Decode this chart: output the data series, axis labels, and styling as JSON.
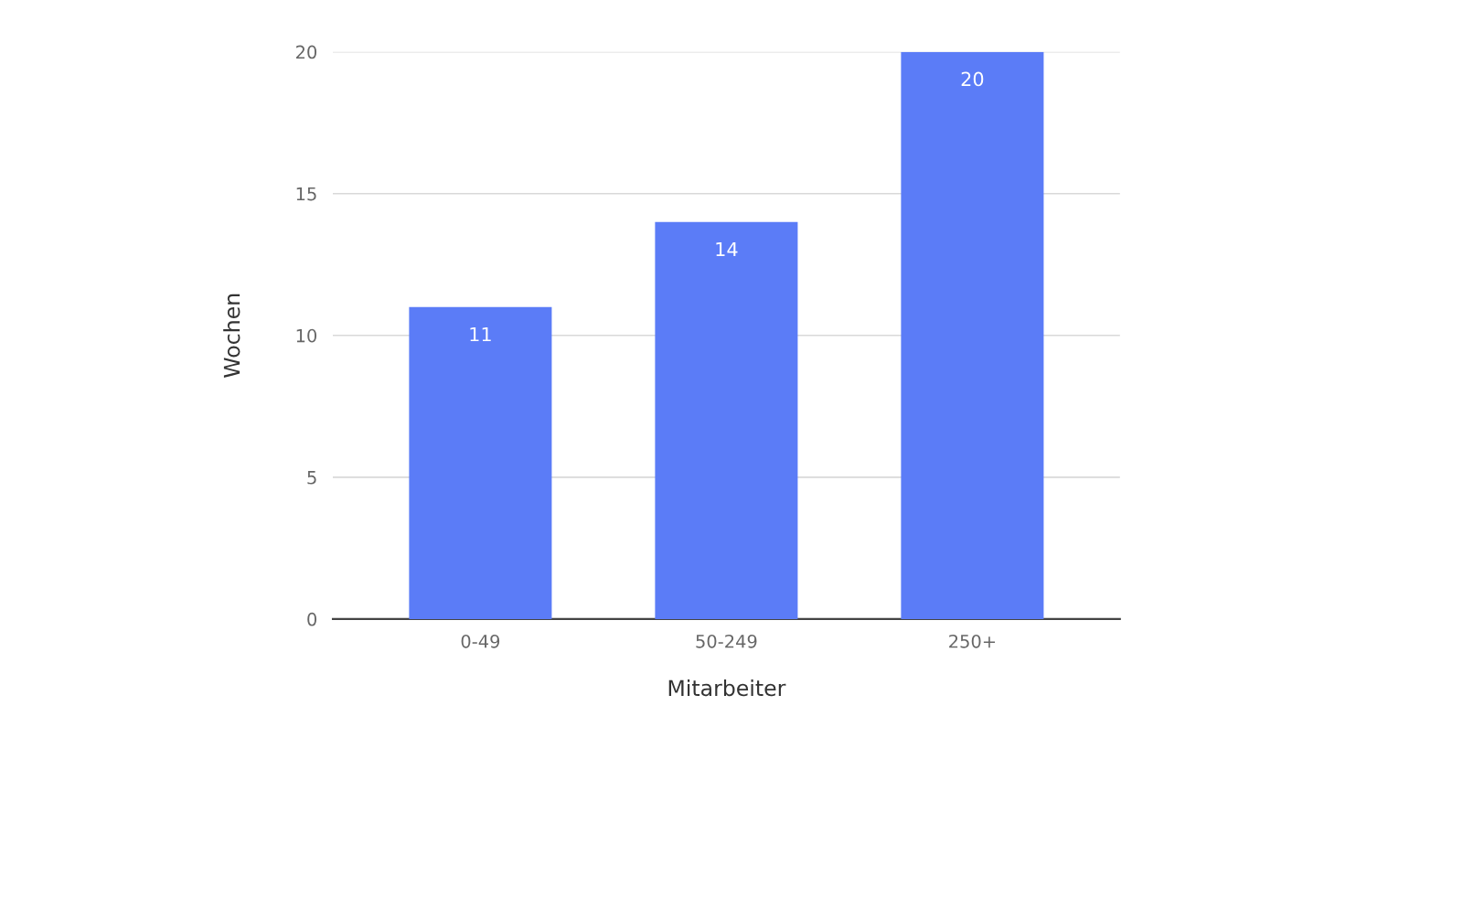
{
  "chart_data": {
    "type": "bar",
    "xlabel": "Mitarbeiter",
    "ylabel": "Wochen",
    "categories": [
      "0-49",
      "50-249",
      "250+"
    ],
    "values": [
      11,
      14,
      20
    ],
    "color": "#5b7cf7",
    "ylim": [
      0,
      20
    ],
    "yticks": [
      0,
      5,
      10,
      15,
      20
    ],
    "grid": "y",
    "data_labels": true
  }
}
